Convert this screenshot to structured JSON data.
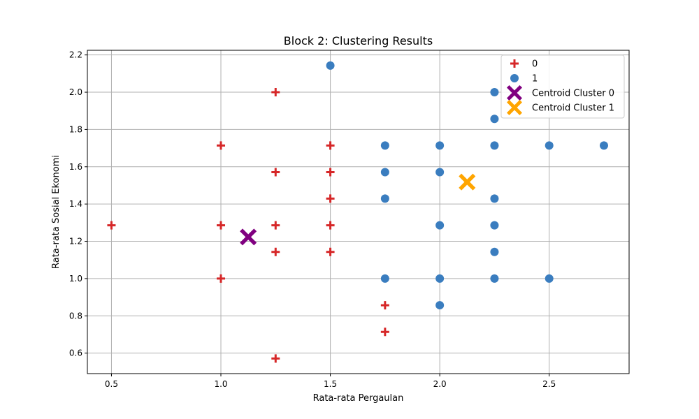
{
  "chart_data": {
    "type": "scatter",
    "title": "Block 2: Clustering Results",
    "xlabel": "Rata-rata Pergaulan",
    "ylabel": "Rata-rata Sosial Ekonomi",
    "xlim": [
      0.39,
      2.865
    ],
    "ylim": [
      0.49,
      2.225
    ],
    "xticks": [
      0.5,
      1.0,
      1.5,
      2.0,
      2.5
    ],
    "xtick_labels": [
      "0.5",
      "1.0",
      "1.5",
      "2.0",
      "2.5"
    ],
    "yticks": [
      0.6,
      0.8,
      1.0,
      1.2,
      1.4,
      1.6,
      1.8,
      2.0,
      2.2
    ],
    "ytick_labels": [
      "0.6",
      "0.8",
      "1.0",
      "1.2",
      "1.4",
      "1.6",
      "1.8",
      "2.0",
      "2.2"
    ],
    "grid": true,
    "legend_position": "top-right",
    "series": [
      {
        "name": "0",
        "marker": "plus",
        "color": "#d62728",
        "points": [
          [
            0.5,
            1.286
          ],
          [
            1.0,
            1.714
          ],
          [
            1.0,
            1.286
          ],
          [
            1.0,
            1.0
          ],
          [
            1.25,
            2.0
          ],
          [
            1.25,
            1.571
          ],
          [
            1.25,
            1.286
          ],
          [
            1.25,
            1.143
          ],
          [
            1.25,
            0.571
          ],
          [
            1.5,
            1.714
          ],
          [
            1.5,
            1.571
          ],
          [
            1.5,
            1.429
          ],
          [
            1.5,
            1.286
          ],
          [
            1.5,
            1.143
          ],
          [
            1.75,
            0.857
          ],
          [
            1.75,
            0.714
          ]
        ]
      },
      {
        "name": "1",
        "marker": "circle",
        "color": "#3a7dbf",
        "points": [
          [
            1.5,
            2.143
          ],
          [
            1.75,
            1.714
          ],
          [
            1.75,
            1.571
          ],
          [
            1.75,
            1.429
          ],
          [
            1.75,
            1.0
          ],
          [
            2.0,
            1.714
          ],
          [
            2.0,
            1.571
          ],
          [
            2.0,
            1.286
          ],
          [
            2.0,
            1.0
          ],
          [
            2.0,
            0.857
          ],
          [
            2.25,
            2.0
          ],
          [
            2.25,
            1.857
          ],
          [
            2.25,
            1.714
          ],
          [
            2.25,
            1.429
          ],
          [
            2.25,
            1.286
          ],
          [
            2.25,
            1.143
          ],
          [
            2.25,
            1.0
          ],
          [
            2.5,
            1.714
          ],
          [
            2.5,
            1.0
          ],
          [
            2.75,
            1.714
          ]
        ]
      },
      {
        "name": "Centroid Cluster 0",
        "marker": "x-filled",
        "color": "#800080",
        "points": [
          [
            1.125,
            1.223
          ]
        ]
      },
      {
        "name": "Centroid Cluster 1",
        "marker": "x-filled",
        "color": "#ffa500",
        "points": [
          [
            2.125,
            1.518
          ]
        ]
      }
    ]
  }
}
